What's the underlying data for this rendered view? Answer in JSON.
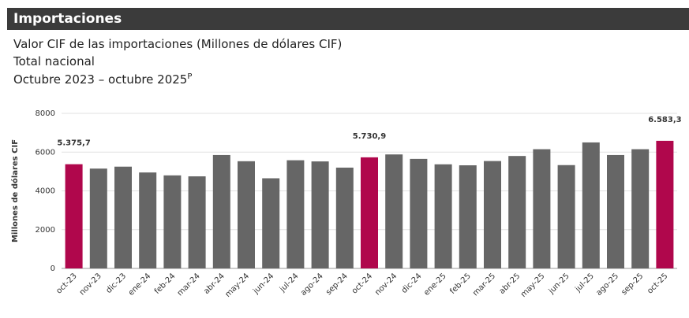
{
  "header": {
    "title": "Importaciones"
  },
  "chart_data": {
    "type": "bar",
    "title": "Valor CIF de las importaciones (Millones de dólares CIF)",
    "subtitle": "Total nacional",
    "period": "Octubre 2023 – octubre 2025",
    "period_superscript": "P",
    "ylabel": "Millones de dólares CIF",
    "categories": [
      "oct-23",
      "nov-23",
      "dic-23",
      "ene-24",
      "feb-24",
      "mar-24",
      "abr-24",
      "may-24",
      "jun-24",
      "jul-24",
      "ago-24",
      "sep-24",
      "oct-24",
      "nov-24",
      "dic-24",
      "ene-25",
      "feb-25",
      "mar-25",
      "abr-25",
      "may-25",
      "jun-25",
      "jul-25",
      "ago-25",
      "sep-25",
      "oct-25"
    ],
    "values": [
      5375.7,
      5150,
      5250,
      4950,
      4800,
      4750,
      5850,
      5530,
      4650,
      5580,
      5520,
      5200,
      5730.9,
      5880,
      5650,
      5370,
      5320,
      5540,
      5800,
      6150,
      5330,
      6500,
      5850,
      6150,
      6583.3
    ],
    "value_labels": [
      "5.375,7",
      null,
      null,
      null,
      null,
      null,
      null,
      null,
      null,
      null,
      null,
      null,
      "5.730,9",
      null,
      null,
      null,
      null,
      null,
      null,
      null,
      null,
      null,
      null,
      null,
      "6.583,3"
    ],
    "colors": [
      "#b0074c",
      "#666666",
      "#666666",
      "#666666",
      "#666666",
      "#666666",
      "#666666",
      "#666666",
      "#666666",
      "#666666",
      "#666666",
      "#666666",
      "#b0074c",
      "#666666",
      "#666666",
      "#666666",
      "#666666",
      "#666666",
      "#666666",
      "#666666",
      "#666666",
      "#666666",
      "#666666",
      "#666666",
      "#b0074c"
    ],
    "ylim": [
      0,
      8000
    ],
    "yticks": [
      0,
      2000,
      4000,
      6000,
      8000
    ],
    "grid": true
  }
}
